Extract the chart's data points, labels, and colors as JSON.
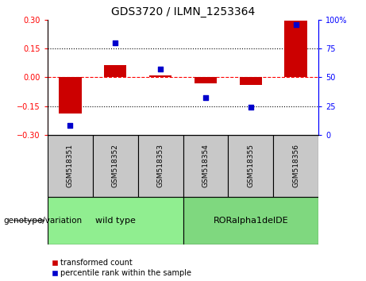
{
  "title": "GDS3720 / ILMN_1253364",
  "samples": [
    "GSM518351",
    "GSM518352",
    "GSM518353",
    "GSM518354",
    "GSM518355",
    "GSM518356"
  ],
  "red_values": [
    -0.19,
    0.065,
    0.01,
    -0.03,
    -0.04,
    0.295
  ],
  "blue_values": [
    8,
    80,
    57,
    32,
    24,
    96
  ],
  "ylim_left": [
    -0.3,
    0.3
  ],
  "ylim_right": [
    0,
    100
  ],
  "yticks_left": [
    -0.3,
    -0.15,
    0,
    0.15,
    0.3
  ],
  "yticks_right": [
    0,
    25,
    50,
    75,
    100
  ],
  "hlines_dotted": [
    0.15,
    -0.15
  ],
  "hline_dashed": 0,
  "groups": [
    {
      "label": "wild type",
      "indices": [
        0,
        1,
        2
      ],
      "color": "#90EE90"
    },
    {
      "label": "RORalpha1delDE",
      "indices": [
        3,
        4,
        5
      ],
      "color": "#7FD87F"
    }
  ],
  "group_row_label": "genotype/variation",
  "legend_red": "transformed count",
  "legend_blue": "percentile rank within the sample",
  "red_color": "#CC0000",
  "blue_color": "#0000CC",
  "bar_width": 0.5
}
